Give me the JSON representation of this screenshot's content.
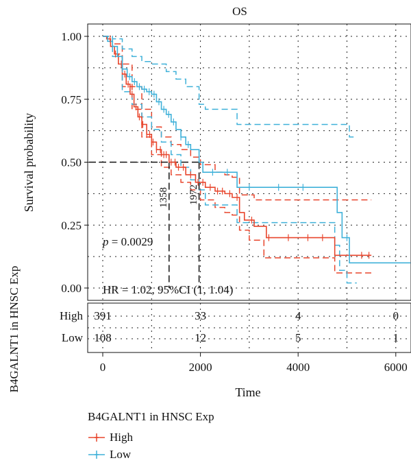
{
  "chart_data": {
    "type": "line",
    "chart_kind": "kaplan-meier",
    "title": "OS",
    "xlabel": "Time",
    "ylabel": "Survival probability",
    "xlim": [
      0,
      6300
    ],
    "ylim": [
      0,
      1.0
    ],
    "x_ticks": [
      "0",
      "2000",
      "4000",
      "6000"
    ],
    "y_ticks": [
      "0.00",
      "0.25",
      "0.50",
      "0.75",
      "1.00"
    ],
    "grid": true,
    "grid_style": "dotted",
    "annotations": {
      "p_label": "p",
      "p_value": " = 0.0029",
      "hr_text": "HR = 1.02, 95%CI (1, 1.04)",
      "median_high_label": "1358",
      "median_low_label": "1972",
      "median_high": 1358,
      "median_low": 1972
    },
    "series": [
      {
        "name": "High",
        "color": "#e8452c",
        "curve": [
          [
            0,
            1.0
          ],
          [
            80,
            0.99
          ],
          [
            160,
            0.96
          ],
          [
            240,
            0.93
          ],
          [
            320,
            0.89
          ],
          [
            400,
            0.85
          ],
          [
            480,
            0.81
          ],
          [
            560,
            0.77
          ],
          [
            640,
            0.72
          ],
          [
            720,
            0.68
          ],
          [
            800,
            0.65
          ],
          [
            900,
            0.61
          ],
          [
            1000,
            0.58
          ],
          [
            1100,
            0.55
          ],
          [
            1200,
            0.53
          ],
          [
            1358,
            0.5
          ],
          [
            1500,
            0.48
          ],
          [
            1700,
            0.45
          ],
          [
            1900,
            0.42
          ],
          [
            2100,
            0.4
          ],
          [
            2300,
            0.385
          ],
          [
            2500,
            0.375
          ],
          [
            2650,
            0.36
          ],
          [
            2800,
            0.3
          ],
          [
            2900,
            0.27
          ],
          [
            3100,
            0.245
          ],
          [
            3350,
            0.2
          ],
          [
            4700,
            0.2
          ],
          [
            4750,
            0.13
          ],
          [
            5500,
            0.13
          ]
        ],
        "ci_upper": [
          [
            0,
            1.0
          ],
          [
            200,
            0.97
          ],
          [
            400,
            0.89
          ],
          [
            600,
            0.8
          ],
          [
            800,
            0.71
          ],
          [
            1000,
            0.64
          ],
          [
            1200,
            0.6
          ],
          [
            1400,
            0.57
          ],
          [
            1600,
            0.55
          ],
          [
            1800,
            0.52
          ],
          [
            2000,
            0.49
          ],
          [
            2300,
            0.46
          ],
          [
            2500,
            0.45
          ],
          [
            2650,
            0.44
          ],
          [
            2800,
            0.37
          ],
          [
            3100,
            0.35
          ],
          [
            3400,
            0.35
          ],
          [
            4700,
            0.35
          ],
          [
            5500,
            0.35
          ]
        ],
        "ci_lower": [
          [
            0,
            1.0
          ],
          [
            200,
            0.93
          ],
          [
            400,
            0.8
          ],
          [
            600,
            0.71
          ],
          [
            800,
            0.6
          ],
          [
            1000,
            0.53
          ],
          [
            1200,
            0.48
          ],
          [
            1400,
            0.45
          ],
          [
            1600,
            0.42
          ],
          [
            1800,
            0.39
          ],
          [
            2000,
            0.35
          ],
          [
            2300,
            0.32
          ],
          [
            2500,
            0.3
          ],
          [
            2650,
            0.29
          ],
          [
            2800,
            0.23
          ],
          [
            3000,
            0.19
          ],
          [
            3300,
            0.12
          ],
          [
            3700,
            0.12
          ],
          [
            4700,
            0.12
          ],
          [
            4750,
            0.06
          ],
          [
            5500,
            0.06
          ]
        ],
        "censor_x": [
          150,
          260,
          380,
          450,
          520,
          600,
          680,
          750,
          820,
          900,
          960,
          1030,
          1100,
          1180,
          1250,
          1300,
          1400,
          1480,
          1550,
          1650,
          1800,
          1950,
          2050,
          2200,
          2350,
          2450,
          2600,
          2750,
          3050,
          3400,
          3800,
          4200,
          4500,
          5300,
          5450
        ]
      },
      {
        "name": "Low",
        "color": "#3fb1d9",
        "curve": [
          [
            0,
            1.0
          ],
          [
            100,
            0.98
          ],
          [
            200,
            0.96
          ],
          [
            300,
            0.92
          ],
          [
            400,
            0.87
          ],
          [
            500,
            0.84
          ],
          [
            600,
            0.82
          ],
          [
            700,
            0.8
          ],
          [
            800,
            0.79
          ],
          [
            900,
            0.78
          ],
          [
            1000,
            0.77
          ],
          [
            1100,
            0.74
          ],
          [
            1200,
            0.71
          ],
          [
            1300,
            0.69
          ],
          [
            1400,
            0.66
          ],
          [
            1500,
            0.63
          ],
          [
            1600,
            0.6
          ],
          [
            1700,
            0.57
          ],
          [
            1800,
            0.55
          ],
          [
            1972,
            0.5
          ],
          [
            2050,
            0.46
          ],
          [
            2300,
            0.46
          ],
          [
            2750,
            0.46
          ],
          [
            2750,
            0.4
          ],
          [
            4800,
            0.4
          ],
          [
            4800,
            0.3
          ],
          [
            4900,
            0.3
          ],
          [
            4900,
            0.2
          ],
          [
            5050,
            0.2
          ],
          [
            5050,
            0.1
          ],
          [
            6300,
            0.1
          ]
        ],
        "ci_upper": [
          [
            0,
            1.0
          ],
          [
            200,
            0.99
          ],
          [
            400,
            0.95
          ],
          [
            600,
            0.92
          ],
          [
            800,
            0.9
          ],
          [
            1000,
            0.89
          ],
          [
            1300,
            0.86
          ],
          [
            1500,
            0.83
          ],
          [
            1700,
            0.8
          ],
          [
            1972,
            0.73
          ],
          [
            2100,
            0.71
          ],
          [
            2750,
            0.71
          ],
          [
            2750,
            0.65
          ],
          [
            4800,
            0.65
          ],
          [
            5050,
            0.6
          ],
          [
            5200,
            0.6
          ]
        ],
        "ci_lower": [
          [
            0,
            1.0
          ],
          [
            200,
            0.92
          ],
          [
            400,
            0.78
          ],
          [
            600,
            0.73
          ],
          [
            800,
            0.68
          ],
          [
            1000,
            0.63
          ],
          [
            1200,
            0.58
          ],
          [
            1400,
            0.53
          ],
          [
            1600,
            0.48
          ],
          [
            1800,
            0.43
          ],
          [
            1972,
            0.39
          ],
          [
            2100,
            0.33
          ],
          [
            2750,
            0.33
          ],
          [
            2750,
            0.26
          ],
          [
            4750,
            0.26
          ],
          [
            4750,
            0.17
          ],
          [
            4850,
            0.17
          ],
          [
            4850,
            0.07
          ],
          [
            5000,
            0.07
          ],
          [
            5000,
            0.02
          ],
          [
            5200,
            0.02
          ]
        ],
        "censor_x": [
          200,
          400,
          550,
          650,
          750,
          850,
          950,
          1050,
          1150,
          1250,
          1350,
          1450,
          1600,
          1750,
          2250,
          2550,
          3000,
          3600,
          4100,
          5000
        ]
      }
    ],
    "risk_table": {
      "title": "B4GALNT1 in HNSC Exp",
      "times": [
        0,
        2000,
        4000,
        6000
      ],
      "rows": [
        {
          "label": "High",
          "values": [
            "391",
            "33",
            "4",
            "0"
          ]
        },
        {
          "label": "Low",
          "values": [
            "108",
            "12",
            "5",
            "1"
          ]
        }
      ]
    }
  },
  "legend": {
    "title": "B4GALNT1 in HNSC Exp",
    "items": [
      {
        "label": "High",
        "color": "#e8452c"
      },
      {
        "label": "Low",
        "color": "#3fb1d9"
      }
    ]
  }
}
